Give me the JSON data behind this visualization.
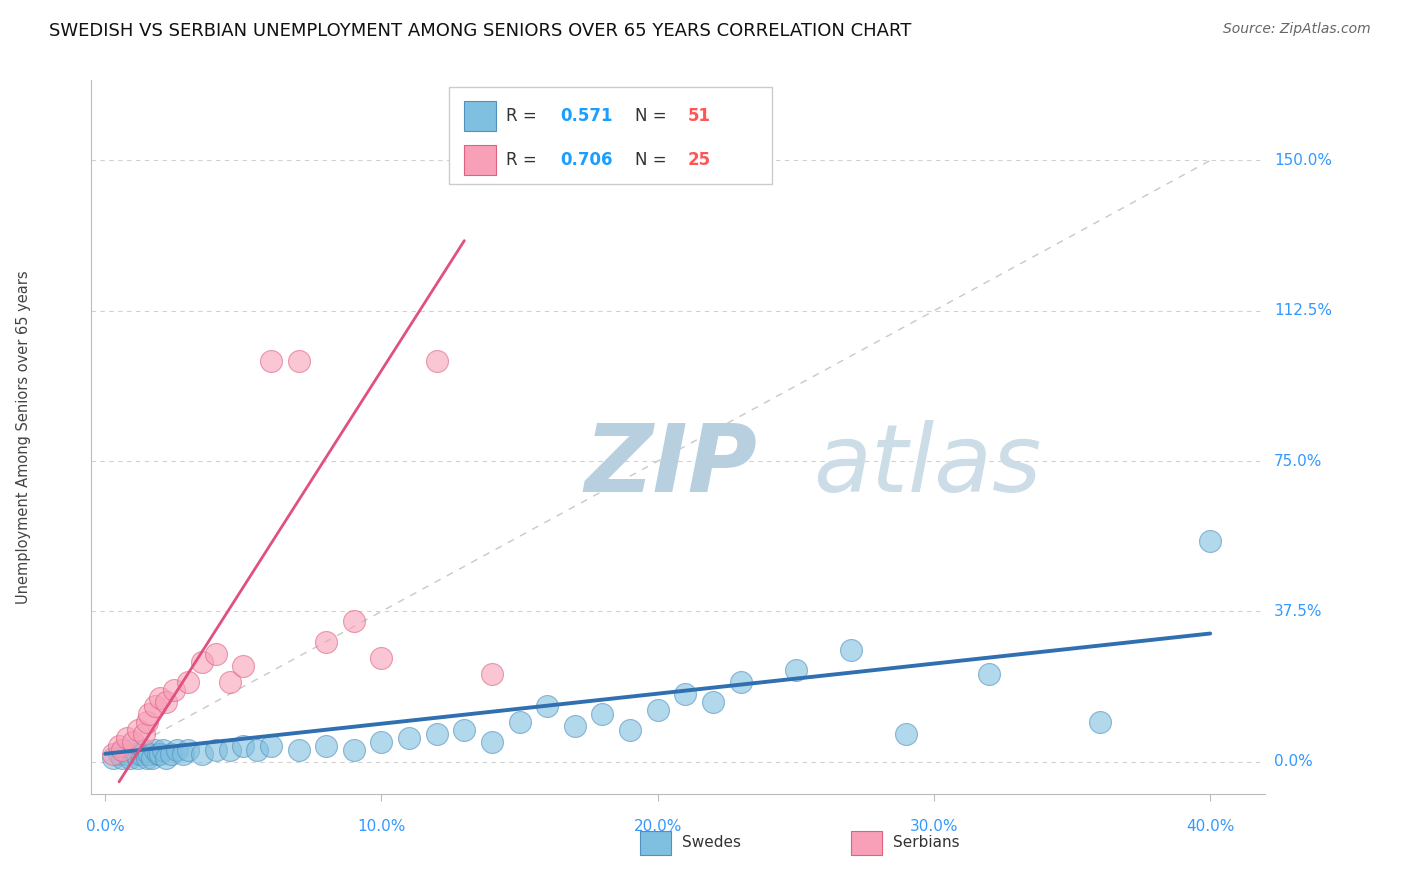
{
  "title": "SWEDISH VS SERBIAN UNEMPLOYMENT AMONG SENIORS OVER 65 YEARS CORRELATION CHART",
  "source_text": "Source: ZipAtlas.com",
  "ylabel": "Unemployment Among Seniors over 65 years",
  "xlabel_ticks": [
    "0.0%",
    "10.0%",
    "20.0%",
    "30.0%",
    "40.0%"
  ],
  "xlabel_vals": [
    0,
    10,
    20,
    30,
    40
  ],
  "ytick_labels": [
    "150.0%",
    "112.5%",
    "75.0%",
    "37.5%",
    "0.0%"
  ],
  "ytick_vals": [
    150.0,
    112.5,
    75.0,
    37.5,
    0.0
  ],
  "xlim": [
    -0.5,
    42
  ],
  "ylim": [
    -8,
    170
  ],
  "swedes_R": "0.571",
  "swedes_N": "51",
  "serbians_R": "0.706",
  "serbians_N": "25",
  "blue_color": "#7fbfdf",
  "blue_edge_color": "#5090c0",
  "blue_line_color": "#3070b0",
  "pink_color": "#f8a0b8",
  "pink_edge_color": "#e06080",
  "pink_line_color": "#e05080",
  "legend_R_color": "#1a9eff",
  "legend_N_color": "#ff5555",
  "grid_color": "#cccccc",
  "watermark_zip_color": "#c0d0e0",
  "watermark_atlas_color": "#d0dde8",
  "background_color": "#ffffff",
  "swedes_x": [
    0.3,
    0.5,
    0.6,
    0.8,
    0.9,
    1.0,
    1.1,
    1.2,
    1.3,
    1.4,
    1.5,
    1.6,
    1.7,
    1.8,
    1.9,
    2.0,
    2.1,
    2.2,
    2.4,
    2.6,
    2.8,
    3.0,
    3.5,
    4.0,
    4.5,
    5.0,
    5.5,
    6.0,
    7.0,
    8.0,
    9.0,
    10.0,
    11.0,
    12.0,
    13.0,
    14.0,
    15.0,
    16.0,
    17.0,
    18.0,
    19.0,
    20.0,
    21.0,
    22.0,
    23.0,
    25.0,
    27.0,
    29.0,
    32.0,
    36.0,
    40.0
  ],
  "swedes_y": [
    1,
    2,
    1,
    2,
    1,
    3,
    2,
    1,
    2,
    3,
    1,
    2,
    1,
    3,
    2,
    2,
    3,
    1,
    2,
    3,
    2,
    3,
    2,
    3,
    3,
    4,
    3,
    4,
    3,
    4,
    3,
    5,
    6,
    7,
    8,
    5,
    10,
    14,
    9,
    12,
    8,
    13,
    17,
    15,
    20,
    23,
    28,
    7,
    22,
    10,
    55
  ],
  "serbians_x": [
    0.3,
    0.5,
    0.6,
    0.8,
    1.0,
    1.2,
    1.4,
    1.5,
    1.6,
    1.8,
    2.0,
    2.2,
    2.5,
    3.0,
    3.5,
    4.0,
    4.5,
    5.0,
    6.0,
    7.0,
    8.0,
    9.0,
    10.0,
    12.0,
    14.0
  ],
  "serbians_y": [
    2,
    4,
    3,
    6,
    5,
    8,
    7,
    10,
    12,
    14,
    16,
    15,
    18,
    20,
    25,
    27,
    20,
    24,
    100,
    100,
    30,
    35,
    26,
    100,
    22
  ],
  "blue_trendline_x": [
    0,
    40
  ],
  "blue_trendline_y": [
    2,
    32
  ],
  "pink_trendline_x": [
    0.5,
    13.0
  ],
  "pink_trendline_y": [
    -5,
    130
  ],
  "diag_line_x": [
    0,
    40
  ],
  "diag_line_y": [
    0,
    150
  ]
}
